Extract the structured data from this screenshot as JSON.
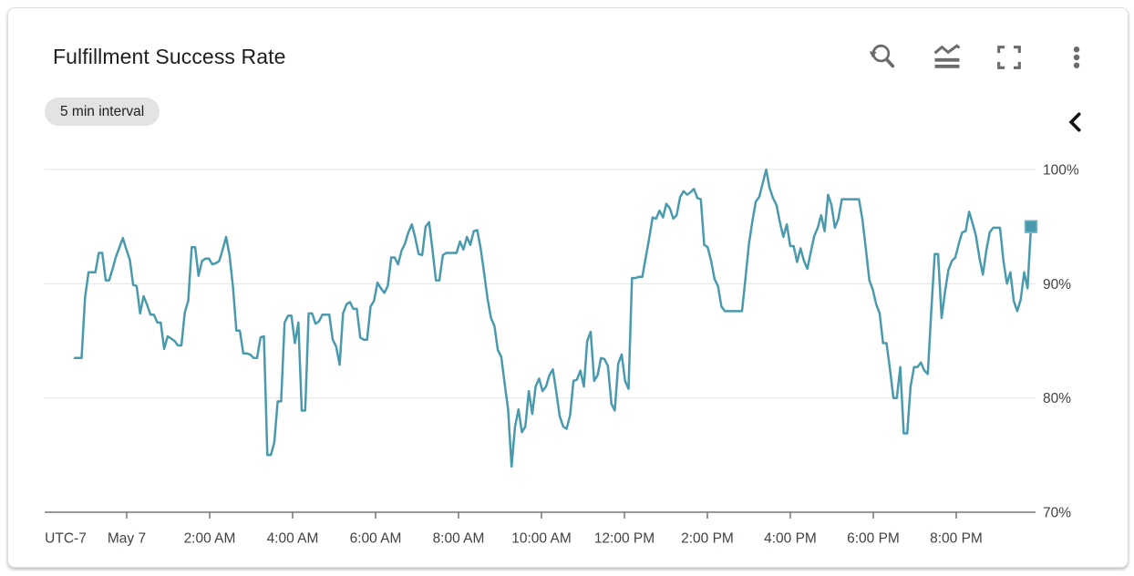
{
  "card": {
    "title": "Fulfillment Success Rate",
    "interval_badge": "5 min interval"
  },
  "toolbar": {
    "icons": [
      "reset-zoom",
      "chart-options",
      "fullscreen",
      "more-options"
    ],
    "collapse_icon": "chevron-left"
  },
  "colors": {
    "line": "#4a9aae",
    "marker_fill": "#4a9aae",
    "marker_stroke": "#79b9c9",
    "gridline": "#e7e7e7",
    "axis": "#767676",
    "tick_label": "#3f4346",
    "icon": "#6b6b6b",
    "chevron": "#141414"
  },
  "chart_data": {
    "type": "line",
    "title": "Fulfillment Success Rate",
    "series_name": "Fulfillment Success Rate",
    "unit": "%",
    "timezone_label": "UTC-7",
    "x_tick_labels": [
      "May 7",
      "2:00 AM",
      "4:00 AM",
      "6:00 AM",
      "8:00 AM",
      "10:00 AM",
      "12:00 PM",
      "2:00 PM",
      "4:00 PM",
      "6:00 PM",
      "8:00 PM"
    ],
    "x_tick_hours_from_midnight": [
      0,
      2,
      4,
      6,
      8,
      10,
      12,
      14,
      16,
      18,
      20
    ],
    "y_tick_labels": [
      "100%",
      "90%",
      "80%",
      "70%"
    ],
    "y_ticks": [
      100,
      90,
      80,
      70
    ],
    "ylim": [
      70,
      100
    ],
    "grid": "horizontal-only",
    "legend_position": "collapsed-right",
    "start_time": "May 6 10:45 PM",
    "end_time": "May 7 9:55 PM",
    "step_minutes": 5,
    "start_hours_from_midnight": -1.25,
    "end_marker": "square",
    "values": [
      83.5,
      83.5,
      83.5,
      88.8,
      91,
      91,
      91,
      92.7,
      92.7,
      90.3,
      90.3,
      91.3,
      92.4,
      93.2,
      94,
      93,
      92.1,
      89.9,
      89.8,
      87.4,
      88.9,
      88.2,
      87.3,
      87.3,
      86.6,
      86.6,
      84.3,
      85.4,
      85.2,
      85,
      84.6,
      84.6,
      87.5,
      88.5,
      93.2,
      93.2,
      90.7,
      92,
      92.2,
      92.2,
      91.7,
      91.8,
      92,
      93,
      94.1,
      92.5,
      89.7,
      85.9,
      85.9,
      83.9,
      83.9,
      83.8,
      83.5,
      83.5,
      85.3,
      85.4,
      75,
      75,
      76.1,
      79.7,
      79.7,
      86.6,
      87.2,
      87.2,
      84.8,
      86.6,
      78.9,
      78.9,
      87.4,
      87.4,
      86.5,
      86.7,
      87.3,
      87.3,
      87.3,
      85.1,
      84.5,
      82.9,
      87.4,
      88.2,
      88.4,
      87.8,
      87.8,
      85.3,
      85.1,
      85.1,
      88,
      88.5,
      90.1,
      89.6,
      89.2,
      89.8,
      92.3,
      92.3,
      91.7,
      92.9,
      93.5,
      94.5,
      95.2,
      94,
      92.6,
      92.5,
      95,
      95.4,
      93,
      90.3,
      90.3,
      92.5,
      92.7,
      92.7,
      92.7,
      92.7,
      93.7,
      93,
      94.1,
      93.4,
      94.6,
      94.7,
      93.1,
      91,
      88.7,
      87,
      86.3,
      84.2,
      83.6,
      81.2,
      79,
      74,
      77.5,
      79,
      77,
      77.5,
      80.6,
      78.6,
      81,
      81.7,
      80.6,
      81,
      82,
      82.5,
      80.5,
      78.4,
      77.5,
      77.3,
      78.5,
      81.5,
      81.6,
      82.4,
      81,
      85,
      85.8,
      81.5,
      82,
      83.5,
      83.4,
      82.8,
      79.5,
      78.9,
      83,
      83.8,
      81.5,
      80.8,
      90.5,
      90.5,
      90.6,
      90.6,
      92.3,
      94,
      95.8,
      95.7,
      96.4,
      95.8,
      97,
      96.6,
      95.7,
      96,
      97.6,
      98.1,
      97.8,
      98,
      98.3,
      97.5,
      97.4,
      93.4,
      93.2,
      92,
      90.4,
      89.8,
      88,
      87.6,
      87.6,
      87.6,
      87.6,
      87.6,
      87.6,
      90.5,
      93.5,
      95.5,
      97.2,
      97.6,
      98.8,
      100,
      98.4,
      97.5,
      96.9,
      95.4,
      94.1,
      95.2,
      93.3,
      93.3,
      91.9,
      93.1,
      92,
      91.3,
      92.8,
      94.2,
      94.9,
      96,
      94.6,
      97.8,
      96.9,
      94.9,
      95.7,
      97.4,
      97.4,
      97.4,
      97.4,
      97.4,
      97.4,
      95.6,
      93,
      90.3,
      89.5,
      88.2,
      87.4,
      84.8,
      84.8,
      82.5,
      80,
      80,
      82.7,
      76.9,
      76.9,
      81,
      82.7,
      82.7,
      83.1,
      82.4,
      82.1,
      87.6,
      92.6,
      92.6,
      87,
      89.3,
      91.2,
      92,
      92.3,
      93.5,
      94.5,
      94.6,
      96.3,
      95.3,
      94.2,
      92.3,
      90.8,
      92.9,
      94.5,
      94.9,
      94.9,
      94.9,
      92,
      90,
      91,
      88.5,
      87.6,
      88.6,
      91,
      89.6,
      95
    ]
  }
}
